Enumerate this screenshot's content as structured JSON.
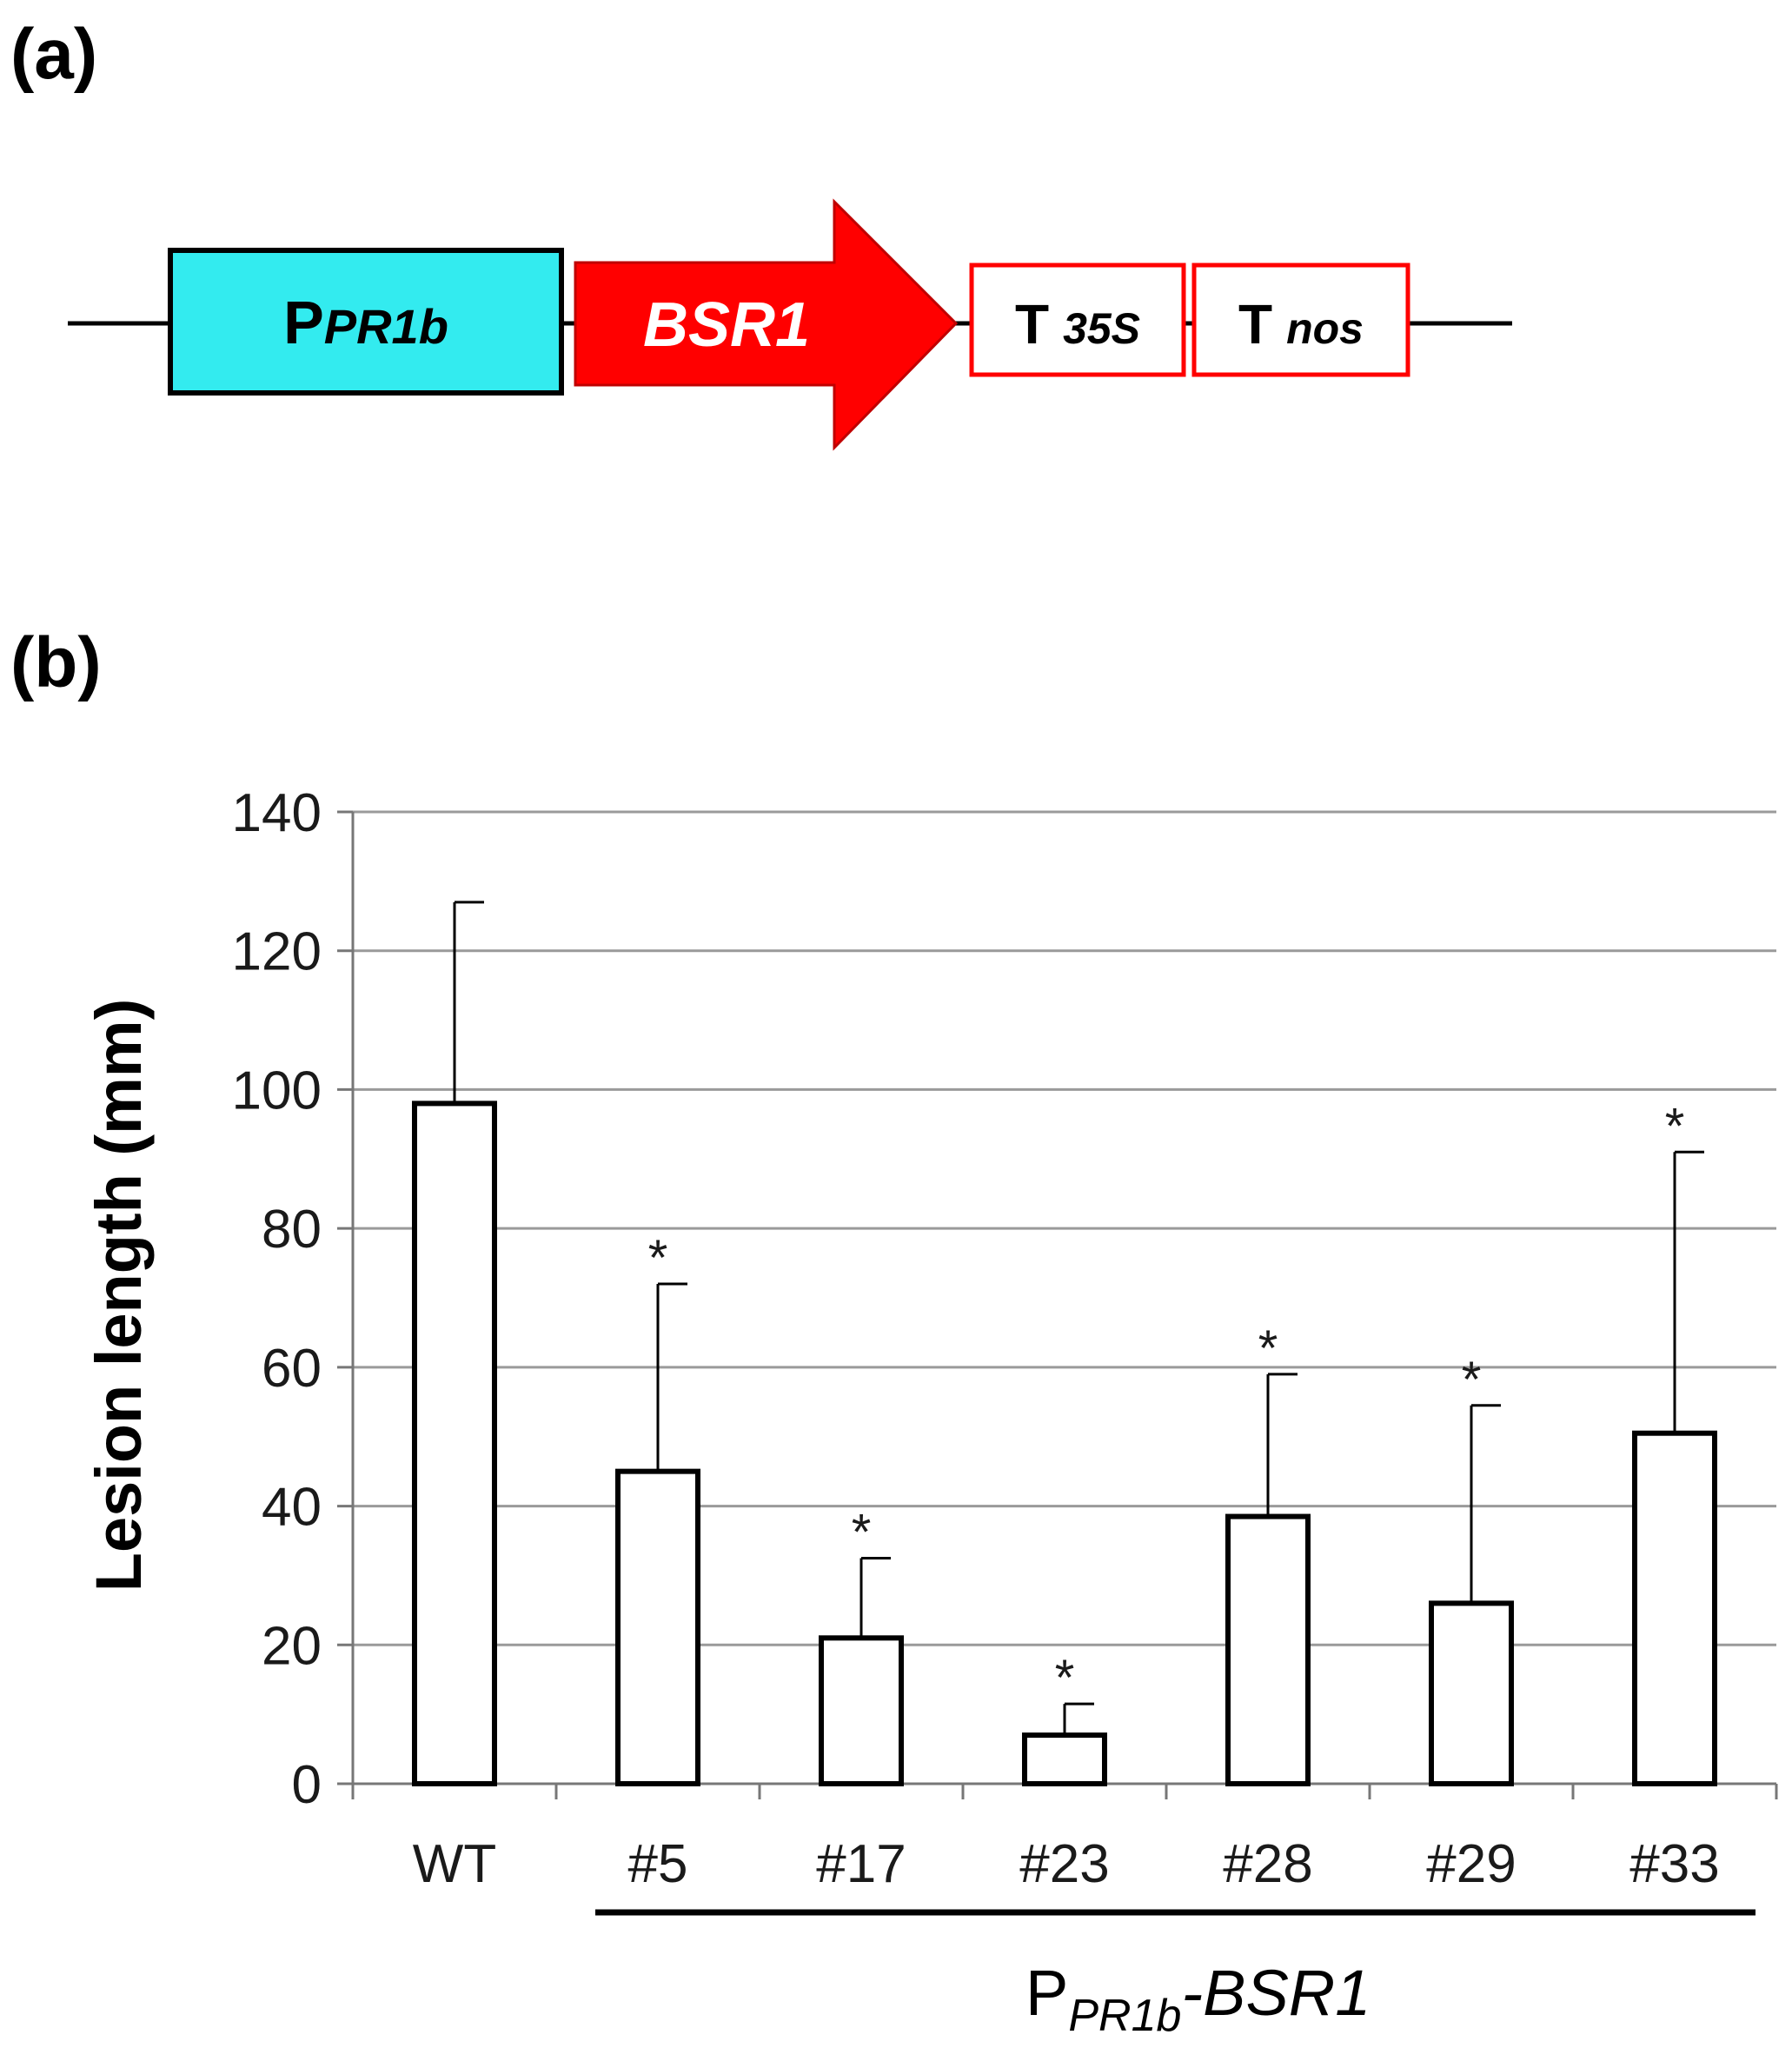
{
  "panel_a": {
    "label": "(a)",
    "promoter": {
      "main": "P",
      "sub": "PR1b",
      "color": "#33EBEF"
    },
    "gene": {
      "label": "BSR1",
      "color": "#FF0000"
    },
    "terminator_1": {
      "main": "T",
      "sub": "35S",
      "border": "#FF0000"
    },
    "terminator_2": {
      "main": "T",
      "sub": "nos",
      "border": "#FF0000"
    }
  },
  "panel_b": {
    "label": "(b)"
  },
  "chart_data": {
    "type": "bar",
    "title": "",
    "xlabel": "",
    "ylabel": "Lesion length (mm)",
    "ylim": [
      0,
      140
    ],
    "yticks": [
      "0",
      "20",
      "40",
      "60",
      "80",
      "100",
      "120",
      "140"
    ],
    "grid": true,
    "categories": [
      "WT",
      "#5",
      "#17",
      "#23",
      "#28",
      "#29",
      "#33"
    ],
    "values": [
      98,
      45,
      21,
      7,
      38.5,
      26,
      50.5
    ],
    "error_upper": [
      127,
      72,
      32.5,
      11.5,
      59,
      54.5,
      91
    ],
    "significance": [
      "",
      "*",
      "*",
      "*",
      "*",
      "*",
      "*"
    ],
    "group_label": {
      "main": "P",
      "sub": "PR1b",
      "suffix": "-BSR1",
      "spans": [
        "#5",
        "#17",
        "#23",
        "#28",
        "#29",
        "#33"
      ]
    },
    "colors": {
      "bar_fill": "#FFFFFF",
      "bar_stroke": "#000000",
      "grid": "#9A9A9A"
    }
  }
}
